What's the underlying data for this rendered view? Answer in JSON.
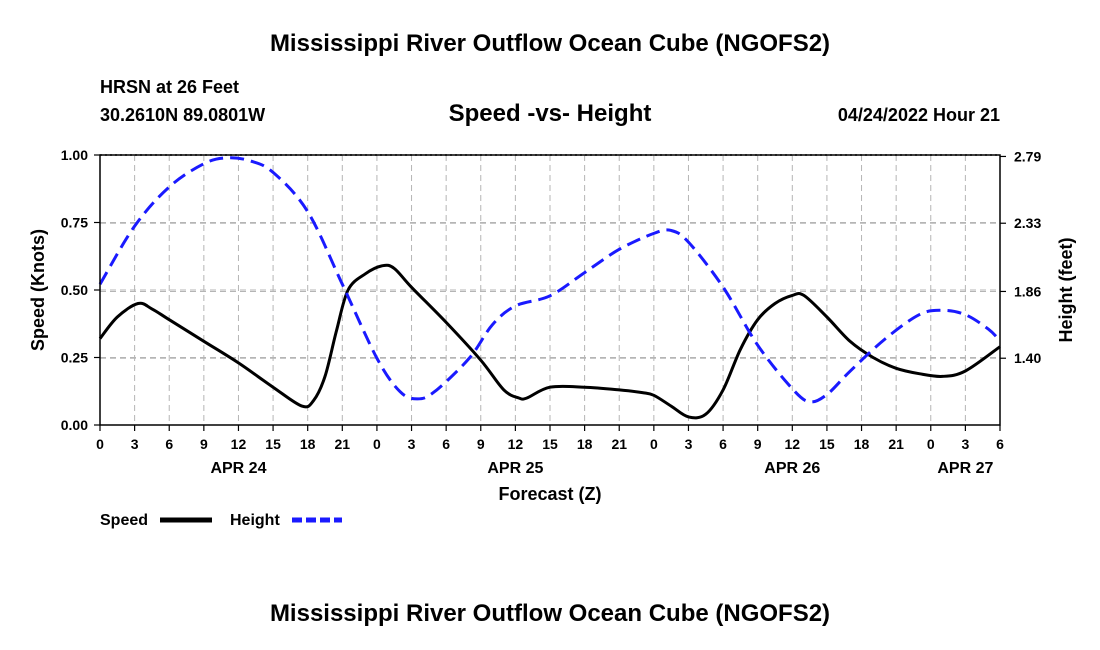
{
  "page": {
    "title_top": "Mississippi River Outflow Ocean Cube (NGOFS2)",
    "title_bottom": "Mississippi River Outflow Ocean Cube (NGOFS2)",
    "station": "HRSN at 26 Feet",
    "coords": "30.2610N  89.0801W",
    "subtitle": "Speed -vs- Height",
    "datetime": "04/24/2022 Hour 21"
  },
  "chart_data": {
    "type": "line",
    "title": "Speed -vs- Height",
    "xlabel": "Forecast (Z)",
    "ylabel_left": "Speed (Knots)",
    "ylabel_right": "Height (feet)",
    "x_range_hours": [
      0,
      78
    ],
    "x_ticks": [
      {
        "h": 0,
        "label": "0"
      },
      {
        "h": 3,
        "label": "3"
      },
      {
        "h": 6,
        "label": "6"
      },
      {
        "h": 9,
        "label": "9"
      },
      {
        "h": 12,
        "label": "12"
      },
      {
        "h": 15,
        "label": "15"
      },
      {
        "h": 18,
        "label": "18"
      },
      {
        "h": 21,
        "label": "21"
      },
      {
        "h": 24,
        "label": "0"
      },
      {
        "h": 27,
        "label": "3"
      },
      {
        "h": 30,
        "label": "6"
      },
      {
        "h": 33,
        "label": "9"
      },
      {
        "h": 36,
        "label": "12"
      },
      {
        "h": 39,
        "label": "15"
      },
      {
        "h": 42,
        "label": "18"
      },
      {
        "h": 45,
        "label": "21"
      },
      {
        "h": 48,
        "label": "0"
      },
      {
        "h": 51,
        "label": "3"
      },
      {
        "h": 54,
        "label": "6"
      },
      {
        "h": 57,
        "label": "9"
      },
      {
        "h": 60,
        "label": "12"
      },
      {
        "h": 63,
        "label": "15"
      },
      {
        "h": 66,
        "label": "18"
      },
      {
        "h": 69,
        "label": "21"
      },
      {
        "h": 72,
        "label": "0"
      },
      {
        "h": 75,
        "label": "3"
      },
      {
        "h": 78,
        "label": "6"
      }
    ],
    "date_labels": [
      {
        "h": 12,
        "label": "APR 24"
      },
      {
        "h": 36,
        "label": "APR 25"
      },
      {
        "h": 60,
        "label": "APR 26"
      },
      {
        "h": 75,
        "label": "APR 27"
      }
    ],
    "left_axis": {
      "min": 0,
      "max": 1,
      "ticks": [
        "0.00",
        "0.25",
        "0.50",
        "0.75",
        "1.00"
      ]
    },
    "right_axis": {
      "ticks": [
        "1.40",
        "1.86",
        "2.33",
        "2.79"
      ]
    },
    "legend": {
      "speed_label": "Speed",
      "height_label": "Height"
    },
    "series": [
      {
        "name": "Speed",
        "axis": "left",
        "units": "knots",
        "color": "#000000",
        "style": "solid",
        "points": [
          [
            0,
            0.32
          ],
          [
            1.5,
            0.4
          ],
          [
            3.3,
            0.45
          ],
          [
            4.5,
            0.43
          ],
          [
            6,
            0.39
          ],
          [
            9,
            0.31
          ],
          [
            12,
            0.23
          ],
          [
            15,
            0.14
          ],
          [
            17.5,
            0.07
          ],
          [
            18.5,
            0.09
          ],
          [
            19.5,
            0.18
          ],
          [
            20.5,
            0.35
          ],
          [
            21.5,
            0.5
          ],
          [
            23,
            0.56
          ],
          [
            24.5,
            0.59
          ],
          [
            25.5,
            0.58
          ],
          [
            27,
            0.51
          ],
          [
            30,
            0.38
          ],
          [
            33,
            0.24
          ],
          [
            35,
            0.13
          ],
          [
            36.3,
            0.1
          ],
          [
            37,
            0.1
          ],
          [
            39,
            0.14
          ],
          [
            42,
            0.14
          ],
          [
            45,
            0.13
          ],
          [
            47,
            0.12
          ],
          [
            48,
            0.11
          ],
          [
            49.5,
            0.07
          ],
          [
            51,
            0.03
          ],
          [
            52.5,
            0.04
          ],
          [
            54,
            0.13
          ],
          [
            55.5,
            0.28
          ],
          [
            57,
            0.39
          ],
          [
            58.5,
            0.45
          ],
          [
            60,
            0.48
          ],
          [
            61,
            0.48
          ],
          [
            63,
            0.4
          ],
          [
            65,
            0.31
          ],
          [
            67,
            0.25
          ],
          [
            69,
            0.21
          ],
          [
            71,
            0.19
          ],
          [
            73,
            0.18
          ],
          [
            75,
            0.2
          ],
          [
            78,
            0.29
          ]
        ]
      },
      {
        "name": "Height",
        "axis": "right",
        "units": "feet",
        "color": "#1a1aff",
        "style": "dashed",
        "points": [
          [
            0,
            1.91
          ],
          [
            3,
            2.31
          ],
          [
            6,
            2.58
          ],
          [
            9,
            2.74
          ],
          [
            11,
            2.78
          ],
          [
            13,
            2.76
          ],
          [
            15,
            2.68
          ],
          [
            18,
            2.41
          ],
          [
            21,
            1.91
          ],
          [
            24,
            1.4
          ],
          [
            26,
            1.17
          ],
          [
            27.5,
            1.12
          ],
          [
            29,
            1.17
          ],
          [
            32,
            1.4
          ],
          [
            34,
            1.63
          ],
          [
            36,
            1.76
          ],
          [
            39,
            1.83
          ],
          [
            42,
            1.99
          ],
          [
            45,
            2.15
          ],
          [
            48,
            2.26
          ],
          [
            49.5,
            2.28
          ],
          [
            51,
            2.2
          ],
          [
            54,
            1.89
          ],
          [
            57,
            1.49
          ],
          [
            60,
            1.19
          ],
          [
            61.5,
            1.1
          ],
          [
            63,
            1.15
          ],
          [
            65,
            1.31
          ],
          [
            68,
            1.53
          ],
          [
            71,
            1.7
          ],
          [
            73,
            1.73
          ],
          [
            75,
            1.7
          ],
          [
            77,
            1.6
          ],
          [
            78,
            1.52
          ]
        ]
      }
    ]
  }
}
